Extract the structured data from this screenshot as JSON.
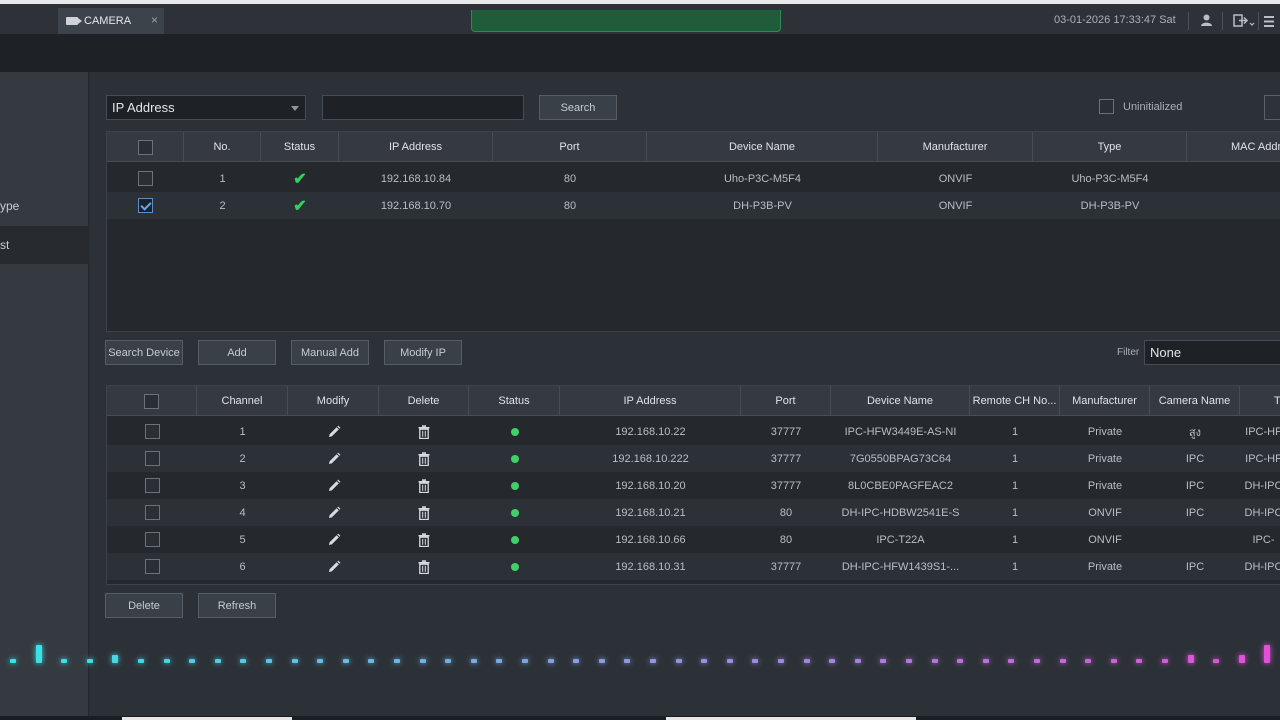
{
  "topbar": {
    "tab_label": "CAMERA",
    "close_glyph": "×",
    "datetime": "03-01-2026 17:33:47 Sat",
    "user_icon": "user-icon",
    "logout_icon": "logout-icon",
    "menu_icon": "menu-icon"
  },
  "sidebar": {
    "items": [
      {
        "label": "ype"
      },
      {
        "label": "st"
      }
    ]
  },
  "search": {
    "field_select": "IP Address",
    "query_value": "",
    "button": "Search",
    "uninitialized_label": "Uninitialized"
  },
  "discovered": {
    "columns": [
      "No.",
      "Status",
      "IP Address",
      "Port",
      "Device Name",
      "Manufacturer",
      "Type",
      "MAC Addr"
    ],
    "rows": [
      {
        "no": "1",
        "status": "✔",
        "ip": "192.168.10.84",
        "port": "80",
        "name": "Uho-P3C-M5F4",
        "manufacturer": "ONVIF",
        "type": "Uho-P3C-M5F4",
        "checked": false
      },
      {
        "no": "2",
        "status": "✔",
        "ip": "192.168.10.70",
        "port": "80",
        "name": "DH-P3B-PV",
        "manufacturer": "ONVIF",
        "type": "DH-P3B-PV",
        "checked": true
      }
    ]
  },
  "actions": {
    "search_device": "Search Device",
    "add": "Add",
    "manual_add": "Manual Add",
    "modify_ip": "Modify IP",
    "filter_label": "Filter",
    "filter_value": "None"
  },
  "added": {
    "columns": [
      "Channel",
      "Modify",
      "Delete",
      "Status",
      "IP Address",
      "Port",
      "Device Name",
      "Remote CH No...",
      "Manufacturer",
      "Camera Name",
      "Ty"
    ],
    "rows": [
      {
        "channel": "1",
        "ip": "192.168.10.22",
        "port": "37777",
        "name": "IPC-HFW3449E-AS-NI",
        "remote": "1",
        "manufacturer": "Private",
        "camera": "สูง",
        "type": "IPC-HF"
      },
      {
        "channel": "2",
        "ip": "192.168.10.222",
        "port": "37777",
        "name": "7G0550BPAG73C64",
        "remote": "1",
        "manufacturer": "Private",
        "camera": "IPC",
        "type": "IPC-HF"
      },
      {
        "channel": "3",
        "ip": "192.168.10.20",
        "port": "37777",
        "name": "8L0CBE0PAGFEAC2",
        "remote": "1",
        "manufacturer": "Private",
        "camera": "IPC",
        "type": "DH-IPC"
      },
      {
        "channel": "4",
        "ip": "192.168.10.21",
        "port": "80",
        "name": "DH-IPC-HDBW2541E-S",
        "remote": "1",
        "manufacturer": "ONVIF",
        "camera": "IPC",
        "type": "DH-IPC"
      },
      {
        "channel": "5",
        "ip": "192.168.10.66",
        "port": "80",
        "name": "IPC-T22A",
        "remote": "1",
        "manufacturer": "ONVIF",
        "camera": "",
        "type": "IPC-"
      },
      {
        "channel": "6",
        "ip": "192.168.10.31",
        "port": "37777",
        "name": "DH-IPC-HFW1439S1-...",
        "remote": "1",
        "manufacturer": "Private",
        "camera": "IPC",
        "type": "DH-IPC"
      }
    ]
  },
  "bottom_actions": {
    "delete": "Delete",
    "refresh": "Refresh"
  },
  "colors": {
    "accent_green": "#34d15c",
    "status_dot": "#3fd06a",
    "wave_start": "#38e3e8",
    "wave_end": "#e24fd8"
  }
}
